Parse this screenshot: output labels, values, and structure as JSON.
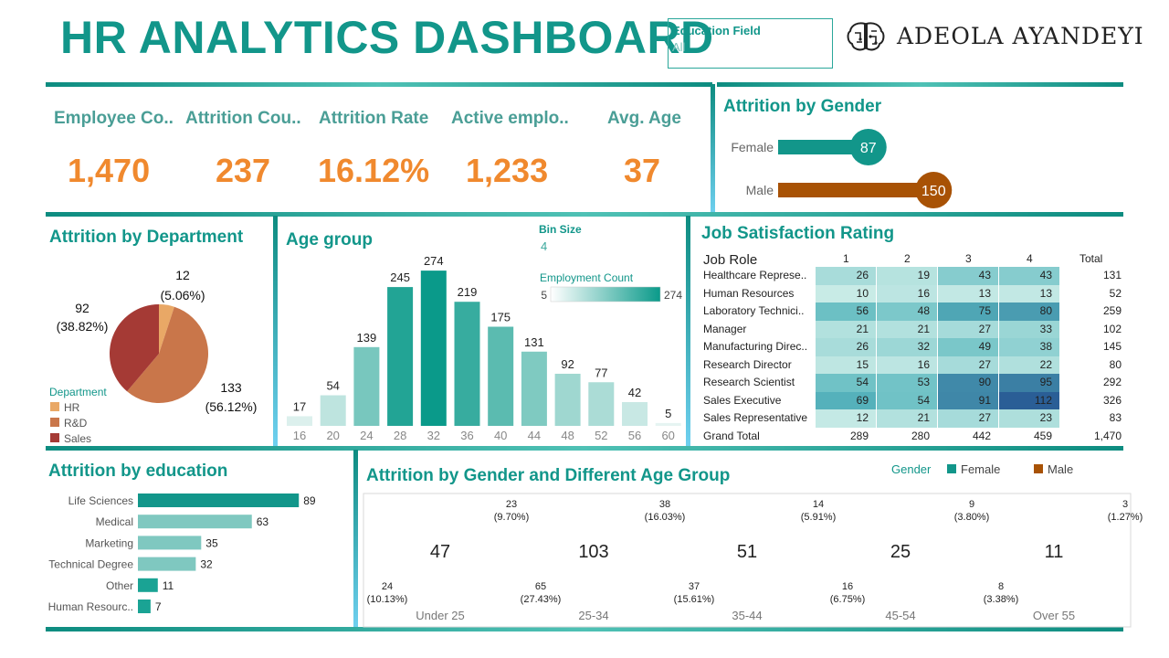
{
  "header": {
    "title": "HR ANALYTICS DASHBOARD",
    "filter_label": "Education Field",
    "filter_value": "All",
    "brand": "ADEOLA AYANDEYI"
  },
  "kpis": [
    {
      "label": "Employee Co..",
      "value": "1,470"
    },
    {
      "label": "Attrition Cou..",
      "value": "237"
    },
    {
      "label": "Attrition Rate",
      "value": "16.12%"
    },
    {
      "label": "Active emplo..",
      "value": "1,233"
    },
    {
      "label": "Avg. Age",
      "value": "37"
    }
  ],
  "sections": {
    "gender": "Attrition by Gender",
    "department": "Attrition by Department",
    "age_group": "Age group",
    "job_sat": "Job Satisfaction Rating",
    "education": "Attrition by education",
    "gender_age": "Attrition by Gender and Different Age Group"
  },
  "colors": {
    "teal": "#12968a",
    "brown": "#a85205",
    "orange": "#f0892e"
  },
  "chart_data": [
    {
      "id": "gender",
      "type": "bar",
      "categories": [
        "Female",
        "Male"
      ],
      "values": [
        87,
        150
      ],
      "colors": [
        "#12968a",
        "#a85205"
      ],
      "xlim": [
        0,
        185
      ]
    },
    {
      "id": "department",
      "type": "pie",
      "legend_title": "Department",
      "legend_position": "bottom-left",
      "slices": [
        {
          "label": "HR",
          "value": 12,
          "pct": "(5.06%)",
          "color": "#e9a866"
        },
        {
          "label": "R&D",
          "value": 133,
          "pct": "(56.12%)",
          "color": "#c9764a"
        },
        {
          "label": "Sales",
          "value": 92,
          "pct": "(38.82%)",
          "color": "#a53a35"
        }
      ]
    },
    {
      "id": "age_group",
      "type": "bar",
      "categories": [
        "16",
        "20",
        "24",
        "28",
        "32",
        "36",
        "40",
        "44",
        "48",
        "52",
        "56",
        "60"
      ],
      "values": [
        17,
        54,
        139,
        245,
        274,
        219,
        175,
        131,
        92,
        77,
        42,
        5
      ],
      "ylim": [
        0,
        300
      ],
      "bin_size_label": "Bin Size",
      "bin_size": "4",
      "color_legend_label": "Employment Count",
      "color_min": "5",
      "color_max": "274"
    },
    {
      "id": "job_satisfaction",
      "type": "heatmap",
      "row_header": "Job Role",
      "columns": [
        "1",
        "2",
        "3",
        "4"
      ],
      "total_header": "Total",
      "rows": [
        {
          "label": "Healthcare Represe..",
          "values": [
            26,
            19,
            43,
            43
          ],
          "total": "131"
        },
        {
          "label": "Human Resources",
          "values": [
            10,
            16,
            13,
            13
          ],
          "total": "52"
        },
        {
          "label": "Laboratory Technici..",
          "values": [
            56,
            48,
            75,
            80
          ],
          "total": "259"
        },
        {
          "label": "Manager",
          "values": [
            21,
            21,
            27,
            33
          ],
          "total": "102"
        },
        {
          "label": "Manufacturing Direc..",
          "values": [
            26,
            32,
            49,
            38
          ],
          "total": "145"
        },
        {
          "label": "Research Director",
          "values": [
            15,
            16,
            27,
            22
          ],
          "total": "80"
        },
        {
          "label": "Research Scientist",
          "values": [
            54,
            53,
            90,
            95
          ],
          "total": "292"
        },
        {
          "label": "Sales Executive",
          "values": [
            69,
            54,
            91,
            112
          ],
          "total": "326"
        },
        {
          "label": "Sales Representative",
          "values": [
            12,
            21,
            27,
            23
          ],
          "total": "83"
        }
      ],
      "grand_total_label": "Grand Total",
      "grand_totals": [
        "289",
        "280",
        "442",
        "459"
      ],
      "grand_total": "1,470"
    },
    {
      "id": "education",
      "type": "bar",
      "categories": [
        "Life Sciences",
        "Medical",
        "Marketing",
        "Technical Degree",
        "Other",
        "Human Resourc.."
      ],
      "values": [
        89,
        63,
        35,
        32,
        11,
        7
      ],
      "xlim": [
        0,
        100
      ]
    },
    {
      "id": "gender_age",
      "type": "pie",
      "legend_title": "Gender",
      "legend_position": "top-right",
      "legend": [
        {
          "label": "Female",
          "color": "#12968a"
        },
        {
          "label": "Male",
          "color": "#a85205"
        }
      ],
      "groups": [
        {
          "label": "Under 25",
          "total": "47",
          "female": 23,
          "female_pct": "(9.70%)",
          "male": 24,
          "male_pct": "(10.13%)"
        },
        {
          "label": "25-34",
          "total": "103",
          "female": 38,
          "female_pct": "(16.03%)",
          "male": 65,
          "male_pct": "(27.43%)"
        },
        {
          "label": "35-44",
          "total": "51",
          "female": 14,
          "female_pct": "(5.91%)",
          "male": 37,
          "male_pct": "(15.61%)"
        },
        {
          "label": "45-54",
          "total": "25",
          "female": 9,
          "female_pct": "(3.80%)",
          "male": 16,
          "male_pct": "(6.75%)"
        },
        {
          "label": "Over 55",
          "total": "11",
          "female": 3,
          "female_pct": "(1.27%)",
          "male": 8,
          "male_pct": "(3.38%)"
        }
      ]
    }
  ]
}
